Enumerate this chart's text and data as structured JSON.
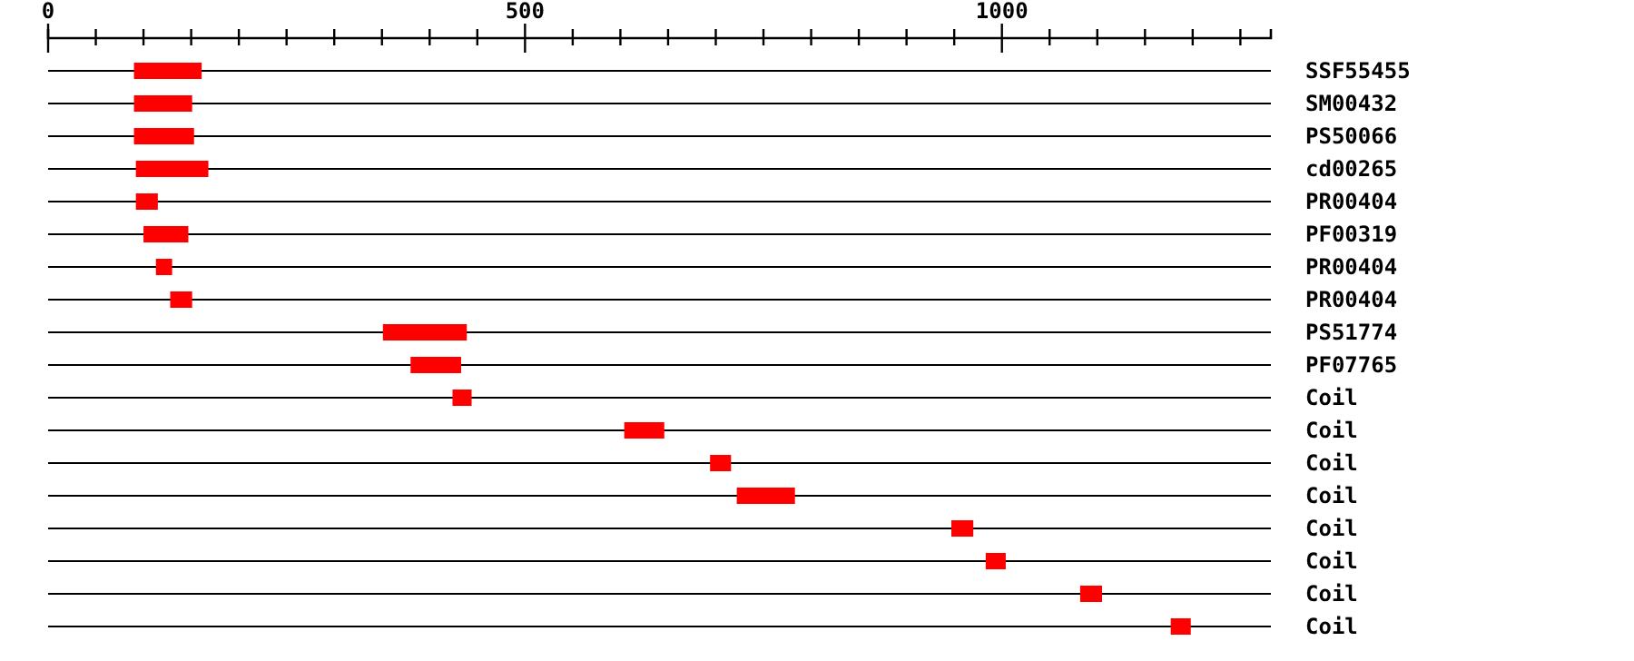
{
  "chart_data": {
    "type": "bar",
    "orientation": "horizontal",
    "color": "#ff0000",
    "grid": "y",
    "categories": [
      "SSF55455",
      "SM00432",
      "PS50066",
      "cd00265",
      "PR00404",
      "PF00319",
      "PR00404",
      "PR00404",
      "PS51774",
      "PF07765",
      "Coil",
      "Coil",
      "Coil",
      "Coil",
      "Coil",
      "Coil",
      "Coil",
      "Coil"
    ],
    "base": [
      90,
      90,
      90,
      92,
      92,
      100,
      113,
      128,
      351,
      380,
      424,
      604,
      694,
      722,
      947,
      983,
      1082,
      1177
    ],
    "values": [
      71,
      61,
      63,
      76,
      23,
      47,
      17,
      23,
      88,
      53,
      20,
      42,
      22,
      61,
      23,
      21,
      23,
      21
    ],
    "xlim": [
      0,
      1282
    ],
    "xticks": [
      0,
      {
        "value": 50,
        "label": null
      },
      {
        "value": 100,
        "label": null
      },
      {
        "value": 150,
        "label": null
      },
      {
        "value": 200,
        "label": null
      },
      {
        "value": 250,
        "label": null
      },
      {
        "value": 300,
        "label": null
      },
      {
        "value": 350,
        "label": null
      },
      {
        "value": 400,
        "label": null
      },
      {
        "value": 450,
        "label": null
      },
      500,
      {
        "value": 550,
        "label": null
      },
      {
        "value": 600,
        "label": null
      },
      {
        "value": 650,
        "label": null
      },
      {
        "value": 700,
        "label": null
      },
      {
        "value": 750,
        "label": null
      },
      {
        "value": 800,
        "label": null
      },
      {
        "value": 850,
        "label": null
      },
      {
        "value": 900,
        "label": null
      },
      {
        "value": 950,
        "label": null
      },
      1000,
      {
        "value": 1050,
        "label": null
      },
      {
        "value": 1100,
        "label": null
      },
      {
        "value": 1150,
        "label": null
      },
      {
        "value": 1200,
        "label": null
      },
      {
        "value": 1250,
        "label": null
      }
    ]
  }
}
